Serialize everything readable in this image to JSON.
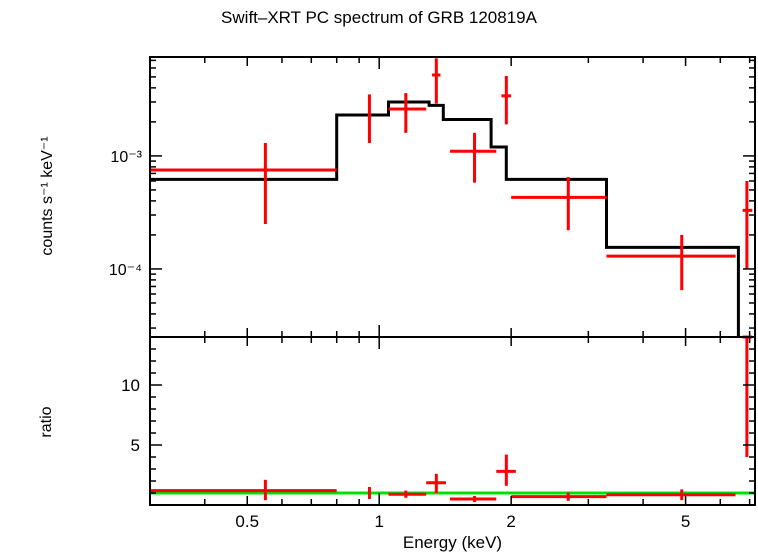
{
  "chart_data": [
    {
      "type": "scatter",
      "panel": "spectrum",
      "title": "Swift–XRT PC spectrum of GRB 120819A",
      "xlabel": "Energy (keV)",
      "ylabel": "counts s⁻¹ keV⁻¹",
      "xscale": "log",
      "yscale": "log",
      "xlim": [
        0.3,
        7.2
      ],
      "ylim": [
        2.5e-05,
        0.0075
      ],
      "x_ticks": [
        "0.5",
        "1",
        "2",
        "5"
      ],
      "y_ticks": [
        "10⁻³",
        "10⁻⁴"
      ],
      "series": [
        {
          "name": "",
          "kind": "data",
          "color": "#ff0000",
          "points": [
            {
              "x": 0.55,
              "xlo": 0.3,
              "xhi": 0.8,
              "y": 0.00075,
              "ylo": 0.00025,
              "yhi": 0.0013
            },
            {
              "x": 0.95,
              "xlo": 0.95,
              "xhi": 0.95,
              "y": 0.0024,
              "ylo": 0.0013,
              "yhi": 0.0035
            },
            {
              "x": 1.15,
              "xlo": 1.05,
              "xhi": 1.28,
              "y": 0.0026,
              "ylo": 0.0016,
              "yhi": 0.0036
            },
            {
              "x": 1.35,
              "xlo": 1.32,
              "xhi": 1.38,
              "y": 0.0052,
              "ylo": 0.0029,
              "yhi": 0.0073
            },
            {
              "x": 1.65,
              "xlo": 1.45,
              "xhi": 1.85,
              "y": 0.0011,
              "ylo": 0.00058,
              "yhi": 0.0016
            },
            {
              "x": 1.95,
              "xlo": 1.9,
              "xhi": 2.0,
              "y": 0.0034,
              "ylo": 0.0019,
              "yhi": 0.0051
            },
            {
              "x": 2.7,
              "xlo": 2.0,
              "xhi": 3.3,
              "y": 0.00043,
              "ylo": 0.00022,
              "yhi": 0.00065
            },
            {
              "x": 4.9,
              "xlo": 3.3,
              "xhi": 6.5,
              "y": 0.00013,
              "ylo": 6.5e-05,
              "yhi": 0.0002
            },
            {
              "x": 6.9,
              "xlo": 6.75,
              "xhi": 7.1,
              "y": 0.00033,
              "ylo": 0.0001,
              "yhi": 0.0006
            }
          ]
        },
        {
          "name": "",
          "kind": "model",
          "color": "#000000",
          "step": [
            {
              "x0": 0.3,
              "x1": 0.8,
              "y": 0.00062
            },
            {
              "x0": 0.8,
              "x1": 1.05,
              "y": 0.0023
            },
            {
              "x0": 1.05,
              "x1": 1.3,
              "y": 0.003
            },
            {
              "x0": 1.3,
              "x1": 1.4,
              "y": 0.0028
            },
            {
              "x0": 1.4,
              "x1": 1.8,
              "y": 0.0021
            },
            {
              "x0": 1.8,
              "x1": 1.95,
              "y": 0.0012
            },
            {
              "x0": 1.95,
              "x1": 3.3,
              "y": 0.00062
            },
            {
              "x0": 3.3,
              "x1": 6.6,
              "y": 0.000155
            },
            {
              "x0": 6.6,
              "x1": 7.2,
              "y": 2e-05
            }
          ]
        }
      ]
    },
    {
      "type": "scatter",
      "panel": "ratio",
      "xlabel": "Energy (keV)",
      "ylabel": "ratio",
      "xscale": "log",
      "yscale": "linear",
      "xlim": [
        0.3,
        7.2
      ],
      "ylim": [
        0,
        14
      ],
      "y_ticks": [
        "5",
        "10"
      ],
      "series": [
        {
          "name": "",
          "kind": "data",
          "color": "#ff0000",
          "points": [
            {
              "x": 0.55,
              "xlo": 0.3,
              "xhi": 0.8,
              "y": 1.2,
              "ylo": 0.4,
              "yhi": 2.1
            },
            {
              "x": 0.95,
              "xlo": 0.95,
              "xhi": 0.95,
              "y": 1.0,
              "ylo": 0.5,
              "yhi": 1.5
            },
            {
              "x": 1.15,
              "xlo": 1.05,
              "xhi": 1.28,
              "y": 0.9,
              "ylo": 0.6,
              "yhi": 1.2
            },
            {
              "x": 1.35,
              "xlo": 1.28,
              "xhi": 1.42,
              "y": 1.85,
              "ylo": 1.0,
              "yhi": 2.6
            },
            {
              "x": 1.65,
              "xlo": 1.45,
              "xhi": 1.85,
              "y": 0.5,
              "ylo": 0.25,
              "yhi": 0.75
            },
            {
              "x": 1.95,
              "xlo": 1.85,
              "xhi": 2.05,
              "y": 2.8,
              "ylo": 1.6,
              "yhi": 4.2
            },
            {
              "x": 2.7,
              "xlo": 2.0,
              "xhi": 3.3,
              "y": 0.7,
              "ylo": 0.35,
              "yhi": 1.05
            },
            {
              "x": 4.9,
              "xlo": 3.3,
              "xhi": 6.5,
              "y": 0.85,
              "ylo": 0.4,
              "yhi": 1.3
            },
            {
              "x": 6.9,
              "xlo": 6.75,
              "xhi": 7.1,
              "y": 14.0,
              "ylo": 4.0,
              "yhi": 14.0
            }
          ]
        },
        {
          "name": "",
          "kind": "reference",
          "color": "#00e000",
          "y": 1
        }
      ]
    }
  ]
}
